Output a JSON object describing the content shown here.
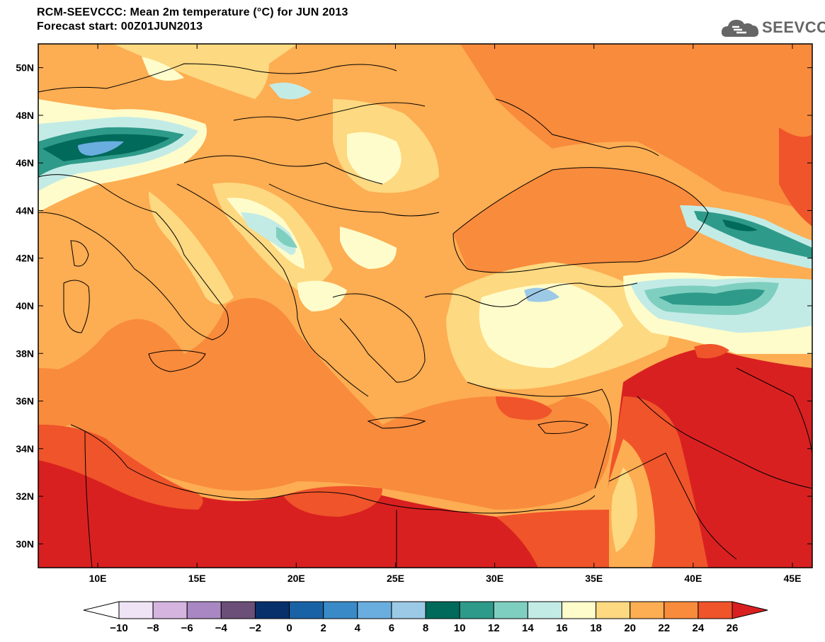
{
  "header": {
    "line1": "RCM-SEEVCCC: Mean 2m temperature (°C) for JUN 2013",
    "line2": "Forecast start: 00Z01JUN2013"
  },
  "logo": {
    "text": "SEEVCCC",
    "icon": "cloud-logo-icon"
  },
  "map": {
    "lon_range": [
      7,
      46
    ],
    "lat_range": [
      29,
      51
    ],
    "x_ticks": [
      "10E",
      "15E",
      "20E",
      "25E",
      "30E",
      "35E",
      "40E",
      "45E"
    ],
    "y_ticks": [
      "50N",
      "48N",
      "46N",
      "44N",
      "42N",
      "40N",
      "38N",
      "36N",
      "34N",
      "32N",
      "30N"
    ]
  },
  "colorbar": {
    "labels": [
      "-10",
      "-8",
      "-6",
      "-4",
      "-2",
      "0",
      "2",
      "4",
      "6",
      "8",
      "10",
      "12",
      "14",
      "16",
      "18",
      "20",
      "22",
      "24",
      "26"
    ],
    "colors": [
      "#ffffff",
      "#efe4f5",
      "#d5b5e0",
      "#a987c2",
      "#6b4f78",
      "#08306b",
      "#1a62a6",
      "#3a8ac8",
      "#6aaee0",
      "#9cc9e6",
      "#016a5a",
      "#2e9a8a",
      "#7fcfc0",
      "#c3ebe6",
      "#fffccb",
      "#fdd981",
      "#fdad52",
      "#f98b3c",
      "#f0542a",
      "#d92020"
    ]
  }
}
